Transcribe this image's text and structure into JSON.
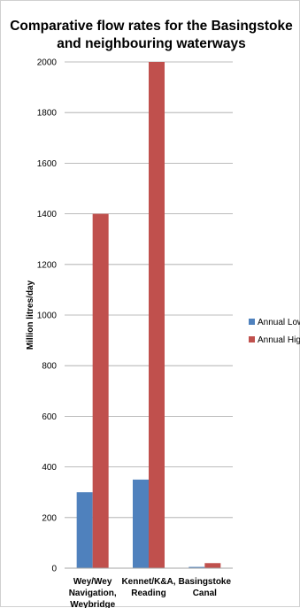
{
  "chart_data": {
    "type": "bar",
    "title": "Comparative flow rates for the Basingstoke and neighbouring waterways",
    "title_lines": [
      "Comparative flow rates for the Basingstoke",
      "and neighbouring waterways"
    ],
    "ylabel": "Million litres/day",
    "xlabel": "",
    "ylim": [
      0,
      2000
    ],
    "yticks": [
      0,
      200,
      400,
      600,
      800,
      1000,
      1200,
      1400,
      1600,
      1800,
      2000
    ],
    "grid": true,
    "legend_position": "right",
    "categories": [
      "Wey/Wey Navigation, Weybridge",
      "Kennet/K&A, Reading",
      "Basingstoke Canal"
    ],
    "category_lines": [
      [
        "Wey/Wey",
        "Navigation,",
        "Weybridge"
      ],
      [
        "Kennet/K&A,",
        "Reading"
      ],
      [
        "Basingstoke",
        "Canal"
      ]
    ],
    "series": [
      {
        "name": "Annual Low",
        "color": "#4f81bd",
        "values": [
          300,
          350,
          5
        ]
      },
      {
        "name": "Annual High",
        "color": "#c0504d",
        "values": [
          1400,
          2000,
          20
        ]
      }
    ]
  }
}
